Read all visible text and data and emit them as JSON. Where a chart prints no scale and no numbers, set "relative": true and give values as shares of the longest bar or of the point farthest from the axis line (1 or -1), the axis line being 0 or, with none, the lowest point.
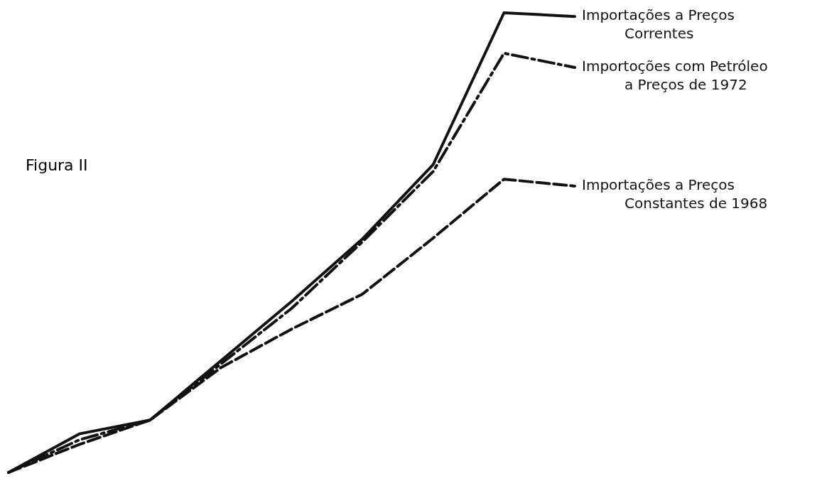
{
  "chart_data": {
    "type": "line",
    "title": "Figura II",
    "relative": true,
    "categories": [
      null,
      null,
      null,
      null,
      null,
      null,
      null,
      null,
      null
    ],
    "series": [
      {
        "name": "Importações a Preços Correntes",
        "color": "#111111",
        "line_style": "solid",
        "values": [
          0,
          0.084,
          0.114,
          0.243,
          0.372,
          0.508,
          0.67,
          1,
          0.992
        ]
      },
      {
        "name": "Importoções com Petróleo a Preços de 1972",
        "color": "#111111",
        "line_style": "dashdot",
        "values": [
          0,
          0.071,
          0.114,
          0.236,
          0.357,
          0.502,
          0.655,
          0.912,
          0.881
        ]
      },
      {
        "name": "Importações a Preços Constantes de 1968",
        "color": "#111111",
        "line_style": "dashed",
        "values": [
          0,
          0.061,
          0.114,
          0.228,
          0.312,
          0.388,
          0.51,
          0.638,
          0.623
        ]
      }
    ]
  }
}
